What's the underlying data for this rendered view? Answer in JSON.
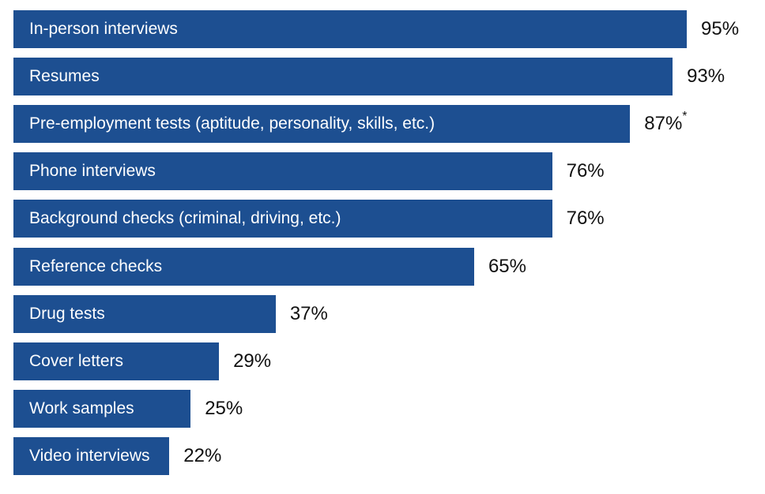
{
  "chart_data": {
    "type": "bar",
    "orientation": "horizontal",
    "title": "",
    "xlabel": "",
    "ylabel": "",
    "xlim": [
      0,
      100
    ],
    "grid": false,
    "legend": "none",
    "bar_color": "#1d4f91",
    "value_color": "#111111",
    "label_color": "#ffffff",
    "categories": [
      "In-person interviews",
      "Resumes",
      "Pre-employment tests (aptitude, personality, skills, etc.)",
      "Phone interviews",
      "Background checks (criminal, driving, etc.)",
      "Reference checks",
      "Drug tests",
      "Cover letters",
      "Work samples",
      "Video interviews"
    ],
    "values": [
      95,
      93,
      87,
      76,
      76,
      65,
      37,
      29,
      25,
      22
    ],
    "value_labels": [
      "95%",
      "93%",
      "87%",
      "76%",
      "76%",
      "65%",
      "37%",
      "29%",
      "25%",
      "22%"
    ],
    "value_notes": [
      "",
      "",
      "*",
      "",
      "",
      "",
      "",
      "",
      "",
      ""
    ]
  }
}
